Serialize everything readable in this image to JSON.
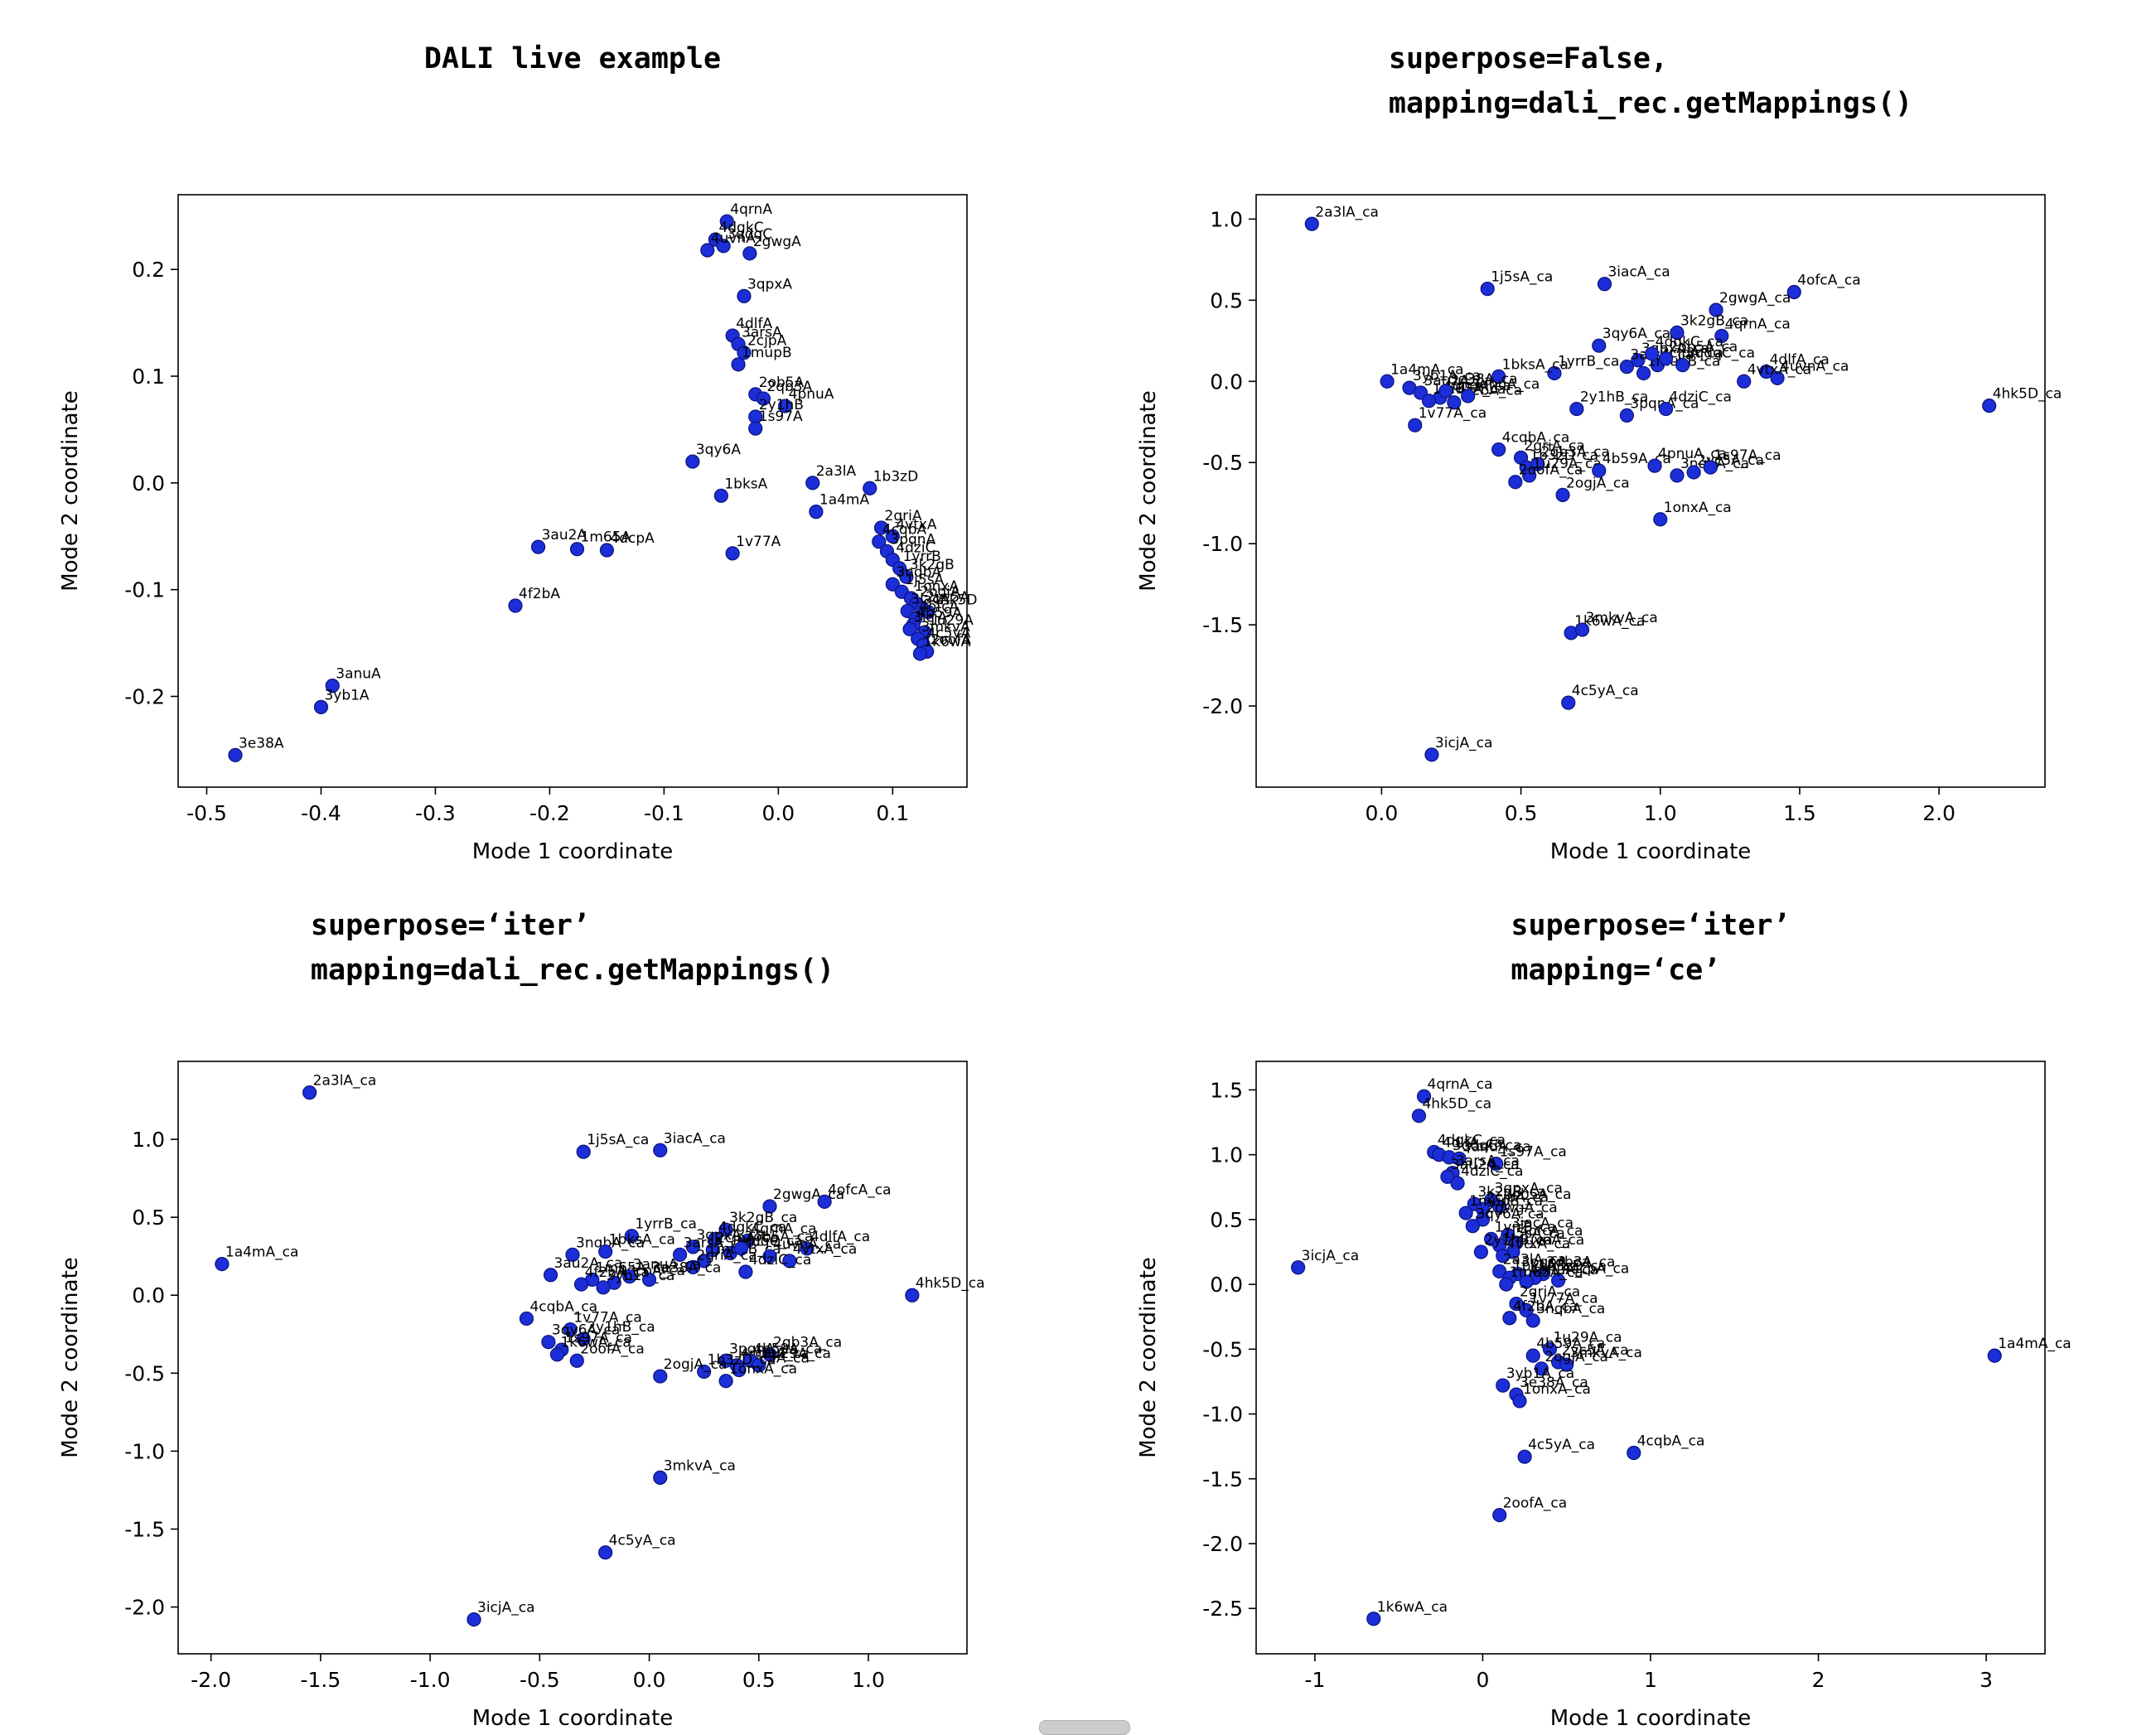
{
  "figure": {
    "background": "#ffffff",
    "point_color": "#1c2ed8",
    "point_edge_color": "#0c137a",
    "axis_color": "#000000",
    "label_color": "#000000"
  },
  "chart_data": [
    {
      "type": "scatter",
      "title": "DALI live example",
      "xlabel": "Mode 1 coordinate",
      "ylabel": "Mode 2 coordinate",
      "xlim": [
        -0.525,
        0.165
      ],
      "ylim": [
        -0.285,
        0.27
      ],
      "xticks": [
        "-0.5",
        "-0.4",
        "-0.3",
        "-0.2",
        "-0.1",
        "0.0",
        "0.1"
      ],
      "yticks": [
        "-0.2",
        "-0.1",
        "0.0",
        "0.1",
        "0.2"
      ],
      "grid": false,
      "legend": "none",
      "points": [
        [
          "4qrnA",
          -0.045,
          0.245
        ],
        [
          "4dgkC",
          -0.055,
          0.228
        ],
        [
          "3qdqC",
          -0.048,
          0.222
        ],
        [
          "2gwgA",
          -0.025,
          0.215
        ],
        [
          "4uvnA",
          -0.062,
          0.218
        ],
        [
          "3qpxA",
          -0.03,
          0.175
        ],
        [
          "4dlfA",
          -0.04,
          0.138
        ],
        [
          "3arsA",
          -0.035,
          0.13
        ],
        [
          "2cjpA",
          -0.03,
          0.122
        ],
        [
          "1mupB",
          -0.035,
          0.111
        ],
        [
          "2ob5A",
          -0.02,
          0.083
        ],
        [
          "2qb3A",
          -0.013,
          0.079
        ],
        [
          "4pnuA",
          0.006,
          0.072
        ],
        [
          "2y1hB",
          -0.02,
          0.062
        ],
        [
          "1s97A",
          -0.02,
          0.051
        ],
        [
          "3qy6A",
          -0.075,
          0.02
        ],
        [
          "2a3lA",
          0.03,
          0.0
        ],
        [
          "1bksA",
          -0.05,
          -0.012
        ],
        [
          "1a4mA",
          0.033,
          -0.027
        ],
        [
          "1b3zD",
          0.08,
          -0.005
        ],
        [
          "2griA",
          0.09,
          -0.042
        ],
        [
          "4vtxA",
          0.1,
          -0.05
        ],
        [
          "4cqbA",
          0.088,
          -0.055
        ],
        [
          "3pqnA",
          0.095,
          -0.064
        ],
        [
          "4dziC",
          0.1,
          -0.072
        ],
        [
          "1yrrB",
          0.106,
          -0.08
        ],
        [
          "3k2gB",
          0.112,
          -0.088
        ],
        [
          "3nqbA",
          0.1,
          -0.095
        ],
        [
          "3au2A",
          -0.21,
          -0.06
        ],
        [
          "1m65A",
          -0.176,
          -0.062
        ],
        [
          "4dcpA",
          -0.15,
          -0.063
        ],
        [
          "1v77A",
          -0.04,
          -0.066
        ],
        [
          "4f2bA",
          -0.23,
          -0.115
        ],
        [
          "1j5sA",
          0.108,
          -0.102
        ],
        [
          "1onxA",
          0.116,
          -0.108
        ],
        [
          "2ogjA",
          0.121,
          -0.113
        ],
        [
          "3iacA",
          0.113,
          -0.12
        ],
        [
          "2vc5A",
          0.126,
          -0.118
        ],
        [
          "4hk5D",
          0.131,
          -0.121
        ],
        [
          "4ofcA",
          0.12,
          -0.127
        ],
        [
          "4b59A",
          0.118,
          -0.133
        ],
        [
          "3icjA",
          0.115,
          -0.137
        ],
        [
          "1u29A",
          0.128,
          -0.14
        ],
        [
          "3mkvA",
          0.122,
          -0.146
        ],
        [
          "4c5yA",
          0.127,
          -0.152
        ],
        [
          "2oofA",
          0.13,
          -0.158
        ],
        [
          "1k6wA",
          0.124,
          -0.16
        ],
        [
          "3anuA",
          -0.39,
          -0.19
        ],
        [
          "3yb1A",
          -0.4,
          -0.21
        ],
        [
          "3e38A",
          -0.475,
          -0.255
        ]
      ]
    },
    {
      "type": "scatter",
      "title": "superpose=False,\nmapping=dali_rec.getMappings()",
      "xlabel": "Mode 1 coordinate",
      "ylabel": "Mode 2 coordinate",
      "xlim": [
        -0.45,
        2.38
      ],
      "ylim": [
        -2.5,
        1.15
      ],
      "xticks": [
        "0.0",
        "0.5",
        "1.0",
        "1.5",
        "2.0"
      ],
      "yticks": [
        "-2.0",
        "-1.5",
        "-1.0",
        "-0.5",
        "0.0",
        "0.5",
        "1.0"
      ],
      "grid": false,
      "legend": "none",
      "points": [
        [
          "2a3lA_ca",
          -0.25,
          0.97
        ],
        [
          "1j5sA_ca",
          0.38,
          0.57
        ],
        [
          "3iacA_ca",
          0.8,
          0.6
        ],
        [
          "4ofcA_ca",
          1.48,
          0.55
        ],
        [
          "2gwgA_ca",
          1.2,
          0.44
        ],
        [
          "3k2gB_ca",
          1.06,
          0.3
        ],
        [
          "4qrnA_ca",
          1.22,
          0.28
        ],
        [
          "3qy6A_ca",
          0.78,
          0.22
        ],
        [
          "3qpxA_ca",
          0.92,
          0.13
        ],
        [
          "2cjpA_ca",
          0.99,
          0.1
        ],
        [
          "3arsA_ca",
          0.88,
          0.09
        ],
        [
          "1mupB_ca",
          0.94,
          0.05
        ],
        [
          "2ob5A_ca",
          1.02,
          0.14
        ],
        [
          "3qdqC_ca",
          1.08,
          0.1
        ],
        [
          "4dgkC_ca",
          0.97,
          0.17
        ],
        [
          "1yrrB_ca",
          0.62,
          0.05
        ],
        [
          "1bksA_ca",
          0.42,
          0.03
        ],
        [
          "1a4mA_ca",
          0.02,
          0.0
        ],
        [
          "3yb1A_ca",
          0.1,
          -0.04
        ],
        [
          "3au2A_ca",
          0.14,
          -0.07
        ],
        [
          "4dcpA_ca",
          0.21,
          -0.1
        ],
        [
          "1m65A_ca",
          0.17,
          -0.12
        ],
        [
          "4f2bA_ca",
          0.26,
          -0.13
        ],
        [
          "3anuA_ca",
          0.31,
          -0.09
        ],
        [
          "3e38A_ca",
          0.23,
          -0.06
        ],
        [
          "4uvnA_ca",
          1.42,
          0.02
        ],
        [
          "4dlfA_ca",
          1.38,
          0.06
        ],
        [
          "4vtxA_ca",
          1.3,
          0.0
        ],
        [
          "4hk5D_ca",
          2.18,
          -0.15
        ],
        [
          "2y1hB_ca",
          0.7,
          -0.17
        ],
        [
          "3pqnA_ca",
          0.88,
          -0.21
        ],
        [
          "4dziC_ca",
          1.02,
          -0.17
        ],
        [
          "1v77A_ca",
          0.12,
          -0.27
        ],
        [
          "4cqbA_ca",
          0.42,
          -0.42
        ],
        [
          "2griA_ca",
          0.5,
          -0.47
        ],
        [
          "1b3zD_ca",
          0.52,
          -0.53
        ],
        [
          "2qb3A_ca",
          0.56,
          -0.51
        ],
        [
          "1u29A_ca",
          0.53,
          -0.58
        ],
        [
          "2oofA_ca",
          0.48,
          -0.62
        ],
        [
          "4b59A_ca",
          0.78,
          -0.55
        ],
        [
          "4pnuA_ca",
          0.98,
          -0.52
        ],
        [
          "3nqbA_ca",
          1.06,
          -0.58
        ],
        [
          "2vc5A_ca",
          1.12,
          -0.56
        ],
        [
          "1s97A_ca",
          1.18,
          -0.53
        ],
        [
          "2ogjA_ca",
          0.65,
          -0.7
        ],
        [
          "1onxA_ca",
          1.0,
          -0.85
        ],
        [
          "1k6wA_ca",
          0.68,
          -1.55
        ],
        [
          "3mkvA_ca",
          0.72,
          -1.53
        ],
        [
          "4c5yA_ca",
          0.67,
          -1.98
        ],
        [
          "3icjA_ca",
          0.18,
          -2.3
        ]
      ]
    },
    {
      "type": "scatter",
      "title": "superpose=‘iter’\nmapping=dali_rec.getMappings()",
      "xlabel": "Mode 1 coordinate",
      "ylabel": "Mode 2 coordinate",
      "xlim": [
        -2.15,
        1.45
      ],
      "ylim": [
        -2.3,
        1.5
      ],
      "xticks": [
        "-2.0",
        "-1.5",
        "-1.0",
        "-0.5",
        "0.0",
        "0.5",
        "1.0"
      ],
      "yticks": [
        "-2.0",
        "-1.5",
        "-1.0",
        "-0.5",
        "0.0",
        "0.5",
        "1.0"
      ],
      "grid": false,
      "legend": "none",
      "points": [
        [
          "2a3lA_ca",
          -1.55,
          1.3
        ],
        [
          "1j5sA_ca",
          -0.3,
          0.92
        ],
        [
          "3iacA_ca",
          0.05,
          0.93
        ],
        [
          "2gwgA_ca",
          0.55,
          0.57
        ],
        [
          "4ofcA_ca",
          0.8,
          0.6
        ],
        [
          "1a4mA_ca",
          -1.95,
          0.2
        ],
        [
          "1yrrB_ca",
          -0.08,
          0.38
        ],
        [
          "3k2gB_ca",
          0.35,
          0.42
        ],
        [
          "4qrnA_ca",
          0.45,
          0.35
        ],
        [
          "4dgkC_ca",
          0.3,
          0.36
        ],
        [
          "3qdqC_ca",
          0.37,
          0.27
        ],
        [
          "3qpxA_ca",
          0.2,
          0.31
        ],
        [
          "2cjpA_ca",
          0.29,
          0.29
        ],
        [
          "3arsA_ca",
          0.14,
          0.26
        ],
        [
          "1mupB_ca",
          0.25,
          0.22
        ],
        [
          "2ob5A_ca",
          0.42,
          0.3
        ],
        [
          "3nqbA_ca",
          -0.35,
          0.26
        ],
        [
          "1bksA_ca",
          -0.2,
          0.28
        ],
        [
          "4dlfA_ca",
          0.72,
          0.3
        ],
        [
          "4vtxA_ca",
          0.64,
          0.22
        ],
        [
          "4uvnA_ca",
          0.55,
          0.25
        ],
        [
          "4dziC_ca",
          0.44,
          0.15
        ],
        [
          "2griA_ca",
          0.2,
          0.18
        ],
        [
          "3au2A_ca",
          -0.45,
          0.13
        ],
        [
          "1m65A_ca",
          -0.26,
          0.1
        ],
        [
          "4dcpA_ca",
          -0.16,
          0.08
        ],
        [
          "3anuA_ca",
          -0.09,
          0.12
        ],
        [
          "3yb1A_ca",
          -0.21,
          0.05
        ],
        [
          "3e38A_ca",
          0.0,
          0.1
        ],
        [
          "4f2bA_ca",
          -0.31,
          0.07
        ],
        [
          "4hk5D_ca",
          1.2,
          0.0
        ],
        [
          "4cqbA_ca",
          -0.56,
          -0.15
        ],
        [
          "1v77A_ca",
          -0.36,
          -0.22
        ],
        [
          "2y1hB_ca",
          -0.3,
          -0.28
        ],
        [
          "3qy6A_ca",
          -0.46,
          -0.3
        ],
        [
          "1s97A_ca",
          -0.4,
          -0.35
        ],
        [
          "1k6wA_ca",
          -0.42,
          -0.38
        ],
        [
          "2oofA_ca",
          -0.33,
          -0.42
        ],
        [
          "2qb3A_ca",
          0.55,
          -0.38
        ],
        [
          "3pqnA_ca",
          0.35,
          -0.42
        ],
        [
          "4pnuA_ca",
          0.4,
          -0.45
        ],
        [
          "2vc5A_ca",
          0.41,
          -0.48
        ],
        [
          "4b59A_ca",
          0.46,
          -0.42
        ],
        [
          "1u29A_ca",
          0.5,
          -0.45
        ],
        [
          "1b3zD_ca",
          0.25,
          -0.49
        ],
        [
          "2ogjA_ca",
          0.05,
          -0.52
        ],
        [
          "1onxA_ca",
          0.35,
          -0.55
        ],
        [
          "3mkvA_ca",
          0.05,
          -1.17
        ],
        [
          "4c5yA_ca",
          -0.2,
          -1.65
        ],
        [
          "3icjA_ca",
          -0.8,
          -2.08
        ]
      ]
    },
    {
      "type": "scatter",
      "title": "superpose=‘iter’\nmapping=‘ce’",
      "xlabel": "Mode 1 coordinate",
      "ylabel": "Mode 2 coordinate",
      "xlim": [
        -1.35,
        3.35
      ],
      "ylim": [
        -2.85,
        1.72
      ],
      "xticks": [
        "-1",
        "0",
        "1",
        "2",
        "3"
      ],
      "yticks": [
        "-2.5",
        "-2.0",
        "-1.5",
        "-1.0",
        "-0.5",
        "0.0",
        "0.5",
        "1.0",
        "1.5"
      ],
      "grid": false,
      "legend": "none",
      "points": [
        [
          "4qrnA_ca",
          -0.35,
          1.45
        ],
        [
          "4hk5D_ca",
          -0.38,
          1.3
        ],
        [
          "4dgkC_ca",
          -0.29,
          1.02
        ],
        [
          "4dlfA_ca",
          -0.26,
          1.0
        ],
        [
          "3qdqC_ca",
          -0.2,
          0.98
        ],
        [
          "3anuA_ca",
          -0.14,
          0.97
        ],
        [
          "1s97A_ca",
          0.08,
          0.93
        ],
        [
          "3arsA_ca",
          -0.18,
          0.86
        ],
        [
          "3au2A_ca",
          -0.21,
          0.83
        ],
        [
          "4dziC_ca",
          -0.15,
          0.78
        ],
        [
          "3qpxA_ca",
          0.05,
          0.65
        ],
        [
          "3k2gB_ca",
          -0.05,
          0.62
        ],
        [
          "2ob5A_ca",
          0.1,
          0.6
        ],
        [
          "2cjpA_ca",
          0.0,
          0.58
        ],
        [
          "1mupB_ca",
          -0.1,
          0.55
        ],
        [
          "2gwgA_ca",
          0.0,
          0.5
        ],
        [
          "3qy6A_ca",
          -0.06,
          0.45
        ],
        [
          "3iacA_ca",
          0.15,
          0.38
        ],
        [
          "1yrrB_ca",
          0.05,
          0.35
        ],
        [
          "4ofcA_ca",
          0.2,
          0.32
        ],
        [
          "1j5sA_ca",
          0.1,
          0.3
        ],
        [
          "2y1hB_ca",
          -0.01,
          0.25
        ],
        [
          "4uvnA_ca",
          0.18,
          0.25
        ],
        [
          "4vtxA_ca",
          0.12,
          0.22
        ],
        [
          "3icjA_ca",
          -1.1,
          0.13
        ],
        [
          "2a3lA_ca",
          0.1,
          0.1
        ],
        [
          "2qb3A_ca",
          0.36,
          0.08
        ],
        [
          "3pqnA_ca",
          0.21,
          0.08
        ],
        [
          "1bksA_ca",
          0.16,
          0.05
        ],
        [
          "1b3zD_ca",
          0.31,
          0.05
        ],
        [
          "4dcpA_ca",
          0.45,
          0.03
        ],
        [
          "4pnuA_ca",
          0.26,
          0.02
        ],
        [
          "1m65A_ca",
          0.14,
          0.0
        ],
        [
          "2griA_ca",
          0.2,
          -0.15
        ],
        [
          "1v77A_ca",
          0.26,
          -0.2
        ],
        [
          "4f2bA_ca",
          0.16,
          -0.26
        ],
        [
          "3nqbA_ca",
          0.3,
          -0.28
        ],
        [
          "1u29A_ca",
          0.4,
          -0.5
        ],
        [
          "4b59A_ca",
          0.3,
          -0.55
        ],
        [
          "2vc5A_ca",
          0.45,
          -0.6
        ],
        [
          "3mkvA_ca",
          0.5,
          -0.62
        ],
        [
          "2ogjA_ca",
          0.35,
          -0.65
        ],
        [
          "3yb1A_ca",
          0.12,
          -0.78
        ],
        [
          "3e38A_ca",
          0.2,
          -0.85
        ],
        [
          "1onxA_ca",
          0.22,
          -0.9
        ],
        [
          "4c5yA_ca",
          0.25,
          -1.33
        ],
        [
          "4cqbA_ca",
          0.9,
          -1.3
        ],
        [
          "2oofA_ca",
          0.1,
          -1.78
        ],
        [
          "1k6wA_ca",
          -0.65,
          -2.58
        ],
        [
          "1a4mA_ca",
          3.05,
          -0.55
        ]
      ]
    }
  ]
}
